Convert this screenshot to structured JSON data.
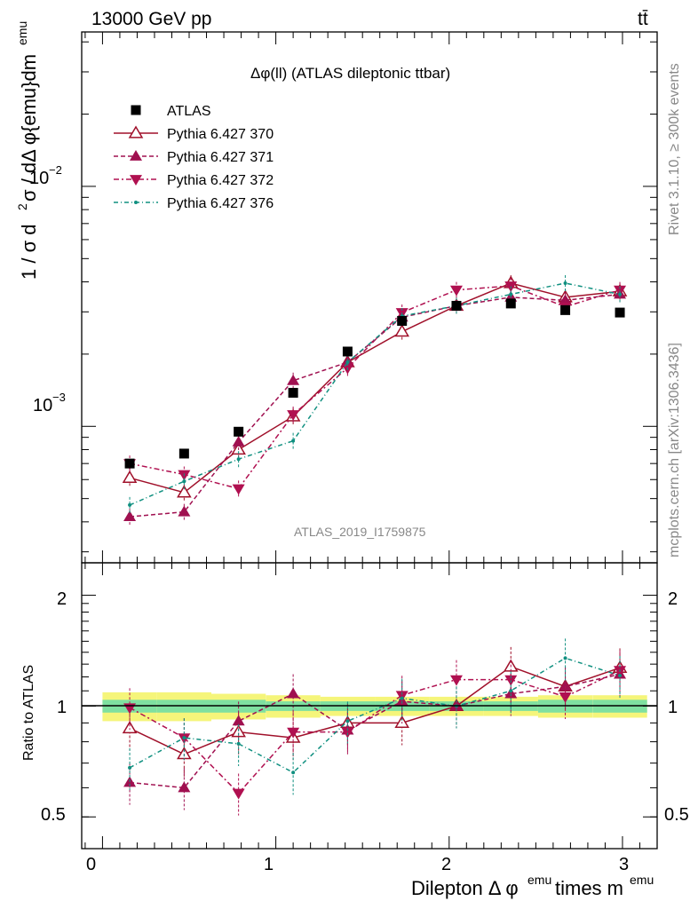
{
  "header": {
    "left": "13000 GeV pp",
    "right": "tt̄"
  },
  "side_labels": {
    "rivet": "Rivet 3.1.10, ≥ 300k events",
    "mcplots": "mcplots.cern.ch [arXiv:1306.3436]"
  },
  "colors": {
    "atlas": "#000000",
    "p370": "#a0102a",
    "p371": "#a01050",
    "p372": "#b01050",
    "p376": "#109080",
    "band_inner": "#7fe0a0",
    "band_outer": "#f5f57a"
  },
  "chart_data": {
    "type": "line",
    "title": "Δφ(ll) (ATLAS dileptonic ttbar)",
    "analysis_id": "ATLAS_2019_I1759875",
    "xlabel": "Dilepton Δ φ^emu times m^emu",
    "ylabel": "1 / σ d²σ / dΔ φ{emu}dm^emu",
    "ratio_ylabel": "Ratio to ATLAS",
    "xlim": [
      -0.12,
      3.2
    ],
    "ylim_main": [
      0.00027,
      0.044
    ],
    "ylim_ratio": [
      0.41,
      2.45
    ],
    "y_scale": "log",
    "x_ticks": [
      "0",
      "1",
      "2",
      "3"
    ],
    "y_tick_labels": [
      "10^-3",
      "10^-2"
    ],
    "ratio_tick_labels": [
      "0.5",
      "1",
      "2"
    ],
    "legend_position": "top-left",
    "x": [
      0.157,
      0.471,
      0.785,
      1.1,
      1.414,
      1.728,
      2.042,
      2.356,
      2.67,
      2.985
    ],
    "series": [
      {
        "name": "ATLAS",
        "marker": "square",
        "values": [
          0.0007,
          0.00077,
          0.00095,
          0.00138,
          0.00205,
          0.00275,
          0.00318,
          0.00325,
          0.00305,
          0.00298
        ],
        "ratio": [
          1.0,
          1.0,
          1.0,
          1.0,
          1.0,
          1.0,
          1.0,
          1.0,
          1.0,
          1.0
        ]
      },
      {
        "name": "Pythia 6.427 370",
        "marker": "triangle-up-open",
        "values": [
          0.00061,
          0.00053,
          0.0008,
          0.0011,
          0.00185,
          0.00248,
          0.00318,
          0.00395,
          0.00345,
          0.00365
        ],
        "ratio": [
          0.87,
          0.74,
          0.85,
          0.82,
          0.9,
          0.9,
          1.0,
          1.28,
          1.13,
          1.27
        ]
      },
      {
        "name": "Pythia 6.427 371",
        "marker": "triangle-up",
        "values": [
          0.00042,
          0.00044,
          0.00086,
          0.00155,
          0.00185,
          0.00285,
          0.00318,
          0.00345,
          0.00335,
          0.00355
        ],
        "ratio": [
          0.62,
          0.6,
          0.91,
          1.08,
          0.86,
          1.03,
          1.0,
          1.08,
          1.13,
          1.22
        ]
      },
      {
        "name": "Pythia 6.427 372",
        "marker": "triangle-down",
        "values": [
          0.0007,
          0.00063,
          0.00055,
          0.00112,
          0.00175,
          0.00298,
          0.0037,
          0.00385,
          0.00315,
          0.0037
        ],
        "ratio": [
          0.99,
          0.82,
          0.58,
          0.85,
          0.85,
          1.07,
          1.18,
          1.18,
          1.06,
          1.25
        ]
      },
      {
        "name": "Pythia 6.427 376",
        "marker": "star",
        "values": [
          0.00047,
          0.00059,
          0.00073,
          0.00087,
          0.00185,
          0.00288,
          0.00318,
          0.00355,
          0.00395,
          0.00355
        ],
        "ratio": [
          0.68,
          0.82,
          0.79,
          0.66,
          0.91,
          1.05,
          1.0,
          1.1,
          1.35,
          1.21
        ]
      }
    ]
  }
}
